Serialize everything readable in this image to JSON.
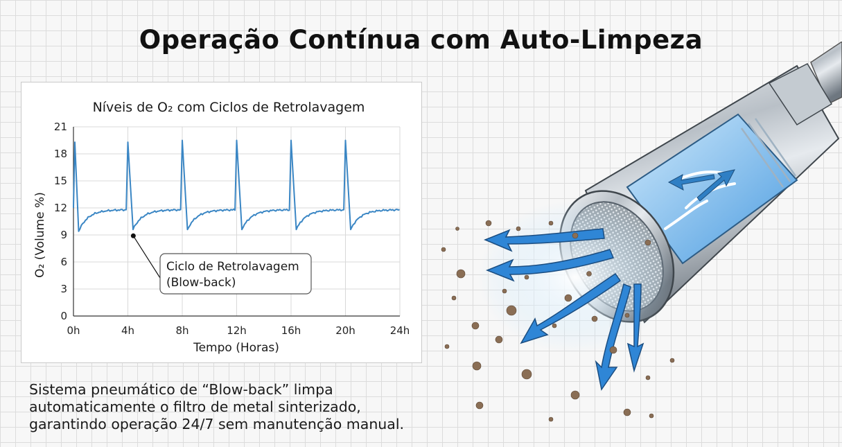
{
  "page": {
    "title": "Operação Contínua com Auto-Limpeza",
    "caption_lines": [
      "Sistema pneumático de “Blow-back” limpa",
      "automaticamente o filtro de metal sinterizado,",
      "garantindo operação 24/7 sem manutenção manual."
    ]
  },
  "chart_data": {
    "type": "line",
    "title": "Níveis de O₂ com Ciclos de Retrolavagem",
    "xlabel": "Tempo (Horas)",
    "ylabel": "O₂ (Volume %)",
    "x_ticks": [
      "0h",
      "4h",
      "8h",
      "12h",
      "16h",
      "20h",
      "24h"
    ],
    "y_ticks": [
      0,
      3,
      6,
      9,
      12,
      15,
      18,
      21
    ],
    "xlim": [
      0,
      24
    ],
    "ylim": [
      0,
      21
    ],
    "grid": true,
    "line_color": "#3a86c4",
    "backflush_hours": [
      0,
      4,
      8,
      12,
      16,
      20
    ],
    "peak_values": [
      19.3,
      19.3,
      19.5,
      19.5,
      19.5,
      19.5
    ],
    "trough_values": [
      9.4,
      9.6,
      9.6,
      9.6,
      9.6,
      9.6
    ],
    "steady_value": 11.8,
    "annotation": {
      "lines": [
        "Ciclo de Retrolavagem",
        "(Blow-back)"
      ],
      "point": {
        "x": 4.4,
        "y": 8.9
      }
    }
  }
}
